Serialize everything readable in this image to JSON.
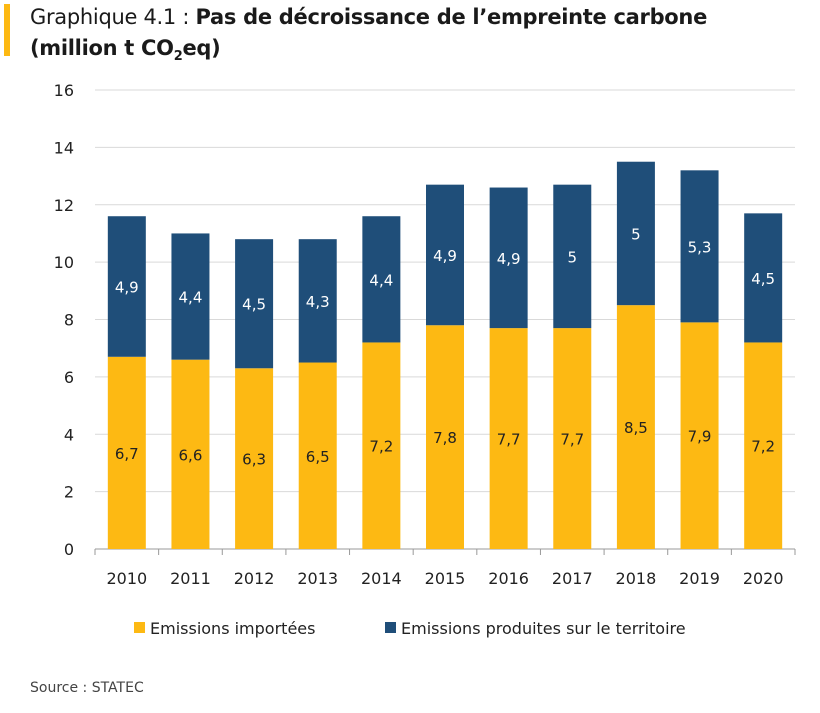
{
  "title": {
    "prefix": "Graphique 4.1 : ",
    "main": "Pas de décroissance de l’empreinte carbone",
    "unit_open": "(million t CO",
    "unit_sub": "2",
    "unit_close": "eq)"
  },
  "source": "Source : STATEC",
  "colors": {
    "imported": "#FDB913",
    "territory": "#1F4E79",
    "accent": "#FDB913"
  },
  "chart_data": {
    "type": "bar",
    "stacked": true,
    "categories": [
      "2010",
      "2011",
      "2012",
      "2013",
      "2014",
      "2015",
      "2016",
      "2017",
      "2018",
      "2019",
      "2020"
    ],
    "series": [
      {
        "name": "Emissions importées",
        "values": [
          6.7,
          6.6,
          6.3,
          6.5,
          7.2,
          7.8,
          7.7,
          7.7,
          8.5,
          7.9,
          7.2
        ],
        "labels": [
          "6,7",
          "6,6",
          "6,3",
          "6,5",
          "7,2",
          "7,8",
          "7,7",
          "7,7",
          "8,5",
          "7,9",
          "7,2"
        ]
      },
      {
        "name": "Emissions produites sur le territoire",
        "values": [
          4.9,
          4.4,
          4.5,
          4.3,
          4.4,
          4.9,
          4.9,
          5,
          5,
          5.3,
          4.5
        ],
        "labels": [
          "4,9",
          "4,4",
          "4,5",
          "4,3",
          "4,4",
          "4,9",
          "4,9",
          "5",
          "5",
          "5,3",
          "4,5"
        ]
      }
    ],
    "ylim": [
      0,
      16
    ],
    "yticks": [
      0,
      2,
      4,
      6,
      8,
      10,
      12,
      14,
      16
    ],
    "grid": true,
    "legend": "bottom"
  }
}
